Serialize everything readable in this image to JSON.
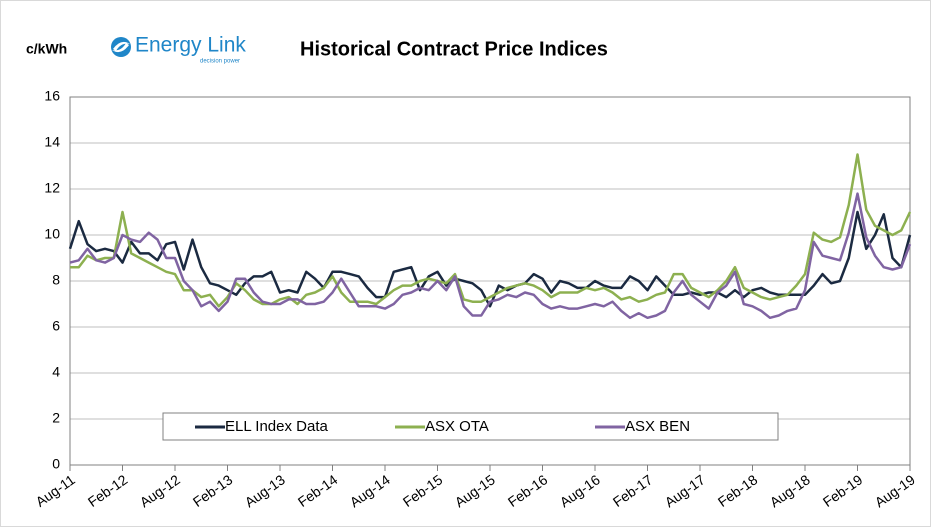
{
  "chart_data": {
    "type": "line",
    "title": "Historical Contract Price Indices",
    "ylabel": "c/kWh",
    "logo": {
      "name": "Energy Link",
      "tagline": "decision power"
    },
    "categories": [
      "Aug-11",
      null,
      null,
      null,
      null,
      null,
      "Feb-12",
      null,
      null,
      null,
      null,
      null,
      "Aug-12",
      null,
      null,
      null,
      null,
      null,
      "Feb-13",
      null,
      null,
      null,
      null,
      null,
      "Aug-13",
      null,
      null,
      null,
      null,
      null,
      "Feb-14",
      null,
      null,
      null,
      null,
      null,
      "Aug-14",
      null,
      null,
      null,
      null,
      null,
      "Feb-15",
      null,
      null,
      null,
      null,
      null,
      "Aug-15",
      null,
      null,
      null,
      null,
      null,
      "Feb-16",
      null,
      null,
      null,
      null,
      null,
      "Aug-16",
      null,
      null,
      null,
      null,
      null,
      "Feb-17",
      null,
      null,
      null,
      null,
      null,
      "Aug-17",
      null,
      null,
      null,
      null,
      null,
      "Feb-18",
      null,
      null,
      null,
      null,
      null,
      "Aug-18",
      null,
      null,
      null,
      null,
      null,
      "Feb-19",
      null,
      null,
      null,
      null,
      null,
      "Aug-19"
    ],
    "series": [
      {
        "name": "ELL Index Data",
        "color": "#1b2a41",
        "values": [
          9.4,
          10.6,
          9.6,
          9.3,
          9.4,
          9.3,
          8.8,
          9.7,
          9.2,
          9.2,
          8.9,
          9.6,
          9.7,
          8.5,
          9.8,
          8.6,
          7.9,
          7.8,
          7.6,
          7.4,
          7.9,
          8.2,
          8.2,
          8.4,
          7.5,
          7.6,
          7.5,
          8.4,
          8.1,
          7.7,
          8.4,
          8.4,
          8.3,
          8.2,
          7.7,
          7.3,
          7.3,
          8.4,
          8.5,
          8.6,
          7.6,
          8.2,
          8.4,
          7.8,
          8.1,
          8.0,
          7.9,
          7.6,
          6.9,
          7.8,
          7.6,
          7.8,
          7.9,
          8.3,
          8.1,
          7.5,
          8.0,
          7.9,
          7.7,
          7.7,
          8.0,
          7.8,
          7.7,
          7.7,
          8.2,
          8.0,
          7.6,
          8.2,
          7.8,
          7.4,
          7.4,
          7.5,
          7.4,
          7.5,
          7.5,
          7.3,
          7.6,
          7.3,
          7.6,
          7.7,
          7.5,
          7.4,
          7.4,
          7.4,
          7.4,
          7.8,
          8.3,
          7.9,
          8.0,
          9.0,
          11.0,
          9.4,
          10.0,
          10.9,
          9.0,
          8.6,
          10.0
        ]
      },
      {
        "name": "ASX OTA",
        "color": "#8db050",
        "values": [
          8.6,
          8.6,
          9.1,
          8.9,
          9.0,
          9.0,
          11.0,
          9.2,
          9.0,
          8.8,
          8.6,
          8.4,
          8.3,
          7.6,
          7.6,
          7.3,
          7.4,
          6.9,
          7.3,
          7.9,
          7.6,
          7.2,
          7.0,
          7.0,
          7.2,
          7.3,
          7.0,
          7.4,
          7.5,
          7.7,
          8.2,
          7.5,
          7.1,
          7.1,
          7.1,
          7.0,
          7.3,
          7.6,
          7.8,
          7.8,
          8.0,
          8.1,
          8.0,
          7.9,
          8.3,
          7.2,
          7.1,
          7.1,
          7.3,
          7.5,
          7.7,
          7.8,
          7.9,
          7.8,
          7.6,
          7.3,
          7.5,
          7.5,
          7.5,
          7.7,
          7.6,
          7.7,
          7.5,
          7.2,
          7.3,
          7.1,
          7.2,
          7.4,
          7.5,
          8.3,
          8.3,
          7.7,
          7.5,
          7.3,
          7.6,
          8.0,
          8.6,
          7.7,
          7.5,
          7.3,
          7.2,
          7.3,
          7.4,
          7.8,
          8.3,
          10.1,
          9.8,
          9.7,
          9.9,
          11.3,
          13.5,
          11.1,
          10.4,
          10.2,
          10.0,
          10.2,
          11.0
        ]
      },
      {
        "name": "ASX BEN",
        "color": "#8064a2",
        "values": [
          8.8,
          8.9,
          9.4,
          8.9,
          8.8,
          9.0,
          10.0,
          9.8,
          9.7,
          10.1,
          9.8,
          9.0,
          9.0,
          8.0,
          7.6,
          6.9,
          7.1,
          6.7,
          7.1,
          8.1,
          8.1,
          7.5,
          7.1,
          7.0,
          7.0,
          7.2,
          7.2,
          7.0,
          7.0,
          7.1,
          7.5,
          8.1,
          7.5,
          6.9,
          6.9,
          6.9,
          6.8,
          7.0,
          7.4,
          7.5,
          7.7,
          7.6,
          8.0,
          7.6,
          8.2,
          6.9,
          6.5,
          6.5,
          7.1,
          7.2,
          7.4,
          7.3,
          7.5,
          7.4,
          7.0,
          6.8,
          6.9,
          6.8,
          6.8,
          6.9,
          7.0,
          6.9,
          7.1,
          6.7,
          6.4,
          6.6,
          6.4,
          6.5,
          6.7,
          7.5,
          8.0,
          7.4,
          7.1,
          6.8,
          7.5,
          7.8,
          8.4,
          7.0,
          6.9,
          6.7,
          6.4,
          6.5,
          6.7,
          6.8,
          7.6,
          9.7,
          9.1,
          9.0,
          8.9,
          10.1,
          11.8,
          9.9,
          9.1,
          8.6,
          8.5,
          8.6,
          9.6
        ]
      }
    ],
    "ylim": [
      0,
      16
    ],
    "yticks": [
      0,
      2,
      4,
      6,
      8,
      10,
      12,
      14,
      16
    ],
    "grid": true,
    "legend": "bottom"
  }
}
